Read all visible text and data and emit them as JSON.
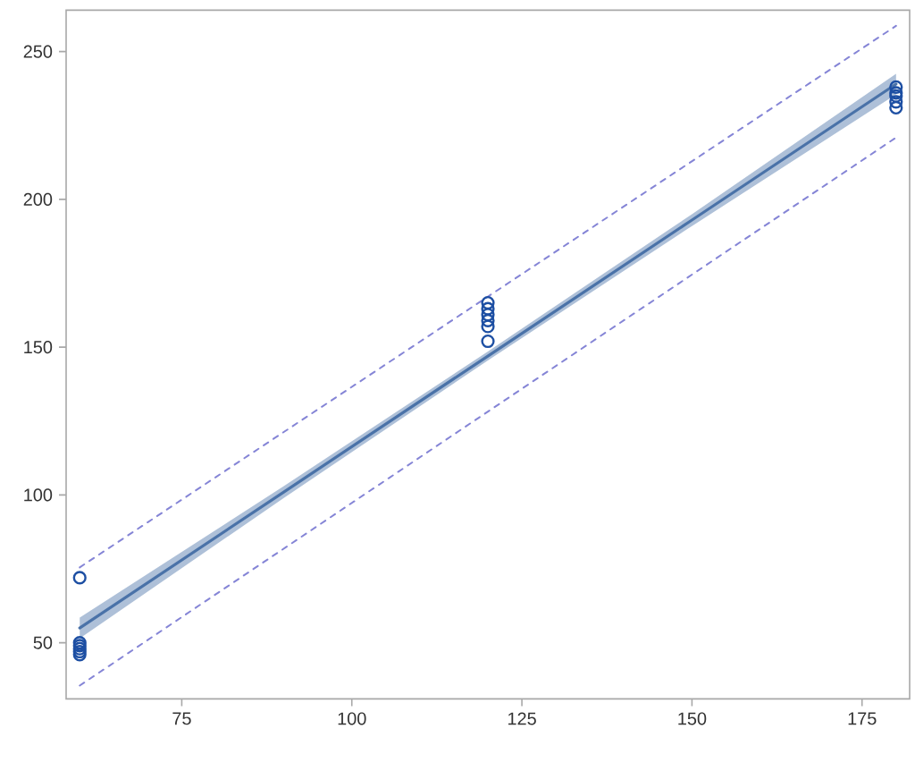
{
  "chart_data": {
    "type": "scatter",
    "xlim": [
      58,
      182
    ],
    "ylim": [
      31,
      264
    ],
    "xticks": [
      75,
      100,
      125,
      150,
      175
    ],
    "yticks": [
      50,
      100,
      150,
      200,
      250
    ],
    "grid": false,
    "series": [
      {
        "type": "line",
        "color": "#4a72a8",
        "x": [
          60,
          90,
          120,
          150,
          180
        ],
        "values": [
          55,
          101,
          147,
          193,
          239
        ],
        "lower": [
          51.5,
          99,
          145.5,
          191,
          235.5
        ],
        "upper": [
          58.5,
          103,
          148.5,
          195,
          242.5
        ]
      },
      {
        "type": "line",
        "color": "#8585d6",
        "line_style": "dashed",
        "x": [
          60,
          180
        ],
        "values": [
          75.5,
          258.7
        ]
      },
      {
        "type": "line",
        "color": "#8585d6",
        "line_style": "dashed",
        "x": [
          60,
          180
        ],
        "values": [
          35.5,
          220.9
        ]
      },
      {
        "color": "#1d4fa3",
        "marker": "circle",
        "x": [
          60,
          60,
          60,
          60,
          60,
          60,
          120,
          120,
          120,
          120,
          120,
          120,
          180,
          180,
          180,
          180,
          180
        ],
        "values": [
          72,
          50,
          49,
          48,
          47,
          46,
          165,
          163,
          161,
          159,
          157,
          152,
          238,
          236,
          235,
          233,
          231
        ]
      }
    ]
  }
}
